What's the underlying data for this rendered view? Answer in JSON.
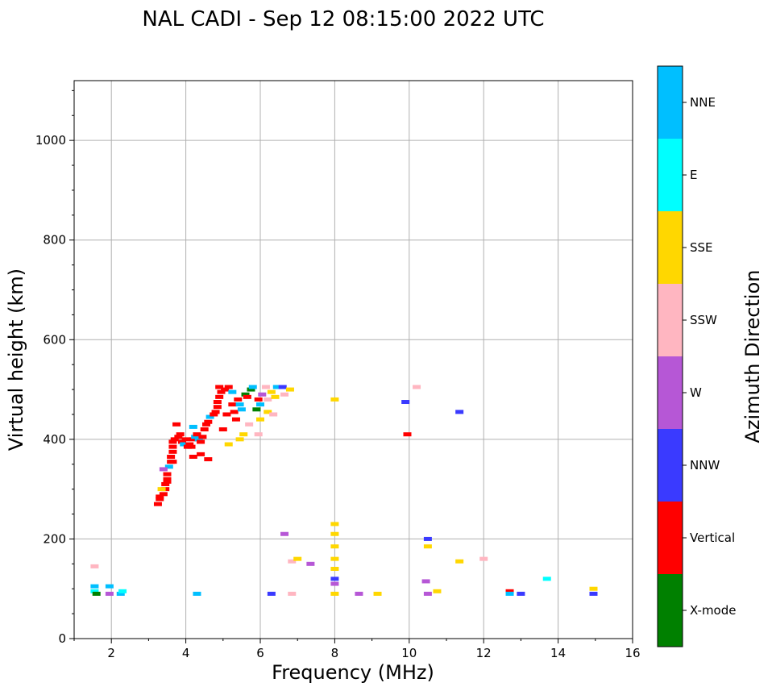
{
  "chart_data": {
    "type": "scatter",
    "title": "NAL CADI - Sep 12 08:15:00 2022 UTC",
    "xlabel": "Frequency (MHz)",
    "ylabel": "Virtual height (km)",
    "xlim": [
      1,
      16
    ],
    "ylim": [
      0,
      1120
    ],
    "xticks": [
      2,
      4,
      6,
      8,
      10,
      12,
      14,
      16
    ],
    "yticks": [
      0,
      200,
      400,
      600,
      800,
      1000
    ],
    "grid": true,
    "colorbar": {
      "label": "Azimuth Direction",
      "categories": [
        {
          "name": "X-mode",
          "color": "#008000"
        },
        {
          "name": "Vertical",
          "color": "#ff0000"
        },
        {
          "name": "NNW",
          "color": "#3a3aff"
        },
        {
          "name": "W",
          "color": "#b657d6"
        },
        {
          "name": "SSW",
          "color": "#ffb6c1"
        },
        {
          "name": "SSE",
          "color": "#ffd700"
        },
        {
          "name": "E",
          "color": "#00ffff"
        },
        {
          "name": "NNE",
          "color": "#00bfff"
        }
      ]
    },
    "points": [
      {
        "f": 3.25,
        "h": 270,
        "c": "Vertical"
      },
      {
        "f": 3.3,
        "h": 280,
        "c": "Vertical"
      },
      {
        "f": 3.3,
        "h": 285,
        "c": "Vertical"
      },
      {
        "f": 3.4,
        "h": 290,
        "c": "Vertical"
      },
      {
        "f": 3.45,
        "h": 300,
        "c": "Vertical"
      },
      {
        "f": 3.45,
        "h": 310,
        "c": "Vertical"
      },
      {
        "f": 3.5,
        "h": 315,
        "c": "Vertical"
      },
      {
        "f": 3.5,
        "h": 320,
        "c": "Vertical"
      },
      {
        "f": 3.5,
        "h": 330,
        "c": "Vertical"
      },
      {
        "f": 3.55,
        "h": 345,
        "c": "NNE"
      },
      {
        "f": 3.6,
        "h": 355,
        "c": "Vertical"
      },
      {
        "f": 3.65,
        "h": 355,
        "c": "Vertical"
      },
      {
        "f": 3.6,
        "h": 365,
        "c": "Vertical"
      },
      {
        "f": 3.65,
        "h": 375,
        "c": "Vertical"
      },
      {
        "f": 3.65,
        "h": 385,
        "c": "Vertical"
      },
      {
        "f": 3.65,
        "h": 395,
        "c": "Vertical"
      },
      {
        "f": 3.7,
        "h": 400,
        "c": "Vertical"
      },
      {
        "f": 3.8,
        "h": 405,
        "c": "Vertical"
      },
      {
        "f": 3.75,
        "h": 430,
        "c": "Vertical"
      },
      {
        "f": 3.85,
        "h": 410,
        "c": "Vertical"
      },
      {
        "f": 3.9,
        "h": 395,
        "c": "Vertical"
      },
      {
        "f": 3.95,
        "h": 390,
        "c": "NNE"
      },
      {
        "f": 4.0,
        "h": 400,
        "c": "Vertical"
      },
      {
        "f": 4.05,
        "h": 385,
        "c": "Vertical"
      },
      {
        "f": 4.1,
        "h": 390,
        "c": "Vertical"
      },
      {
        "f": 4.15,
        "h": 385,
        "c": "Vertical"
      },
      {
        "f": 4.2,
        "h": 400,
        "c": "Vertical"
      },
      {
        "f": 4.25,
        "h": 405,
        "c": "NNE"
      },
      {
        "f": 4.3,
        "h": 410,
        "c": "Vertical"
      },
      {
        "f": 4.35,
        "h": 400,
        "c": "NNE"
      },
      {
        "f": 4.4,
        "h": 395,
        "c": "Vertical"
      },
      {
        "f": 4.45,
        "h": 405,
        "c": "Vertical"
      },
      {
        "f": 4.5,
        "h": 420,
        "c": "Vertical"
      },
      {
        "f": 4.55,
        "h": 430,
        "c": "Vertical"
      },
      {
        "f": 4.6,
        "h": 435,
        "c": "Vertical"
      },
      {
        "f": 4.65,
        "h": 445,
        "c": "NNE"
      },
      {
        "f": 4.75,
        "h": 450,
        "c": "Vertical"
      },
      {
        "f": 4.8,
        "h": 455,
        "c": "Vertical"
      },
      {
        "f": 4.85,
        "h": 465,
        "c": "Vertical"
      },
      {
        "f": 4.85,
        "h": 475,
        "c": "Vertical"
      },
      {
        "f": 4.9,
        "h": 485,
        "c": "Vertical"
      },
      {
        "f": 4.95,
        "h": 495,
        "c": "Vertical"
      },
      {
        "f": 4.9,
        "h": 505,
        "c": "Vertical"
      },
      {
        "f": 5.05,
        "h": 500,
        "c": "Vertical"
      },
      {
        "f": 5.0,
        "h": 420,
        "c": "Vertical"
      },
      {
        "f": 5.1,
        "h": 450,
        "c": "Vertical"
      },
      {
        "f": 5.15,
        "h": 505,
        "c": "Vertical"
      },
      {
        "f": 5.25,
        "h": 470,
        "c": "Vertical"
      },
      {
        "f": 5.25,
        "h": 495,
        "c": "NNE"
      },
      {
        "f": 5.3,
        "h": 455,
        "c": "Vertical"
      },
      {
        "f": 5.35,
        "h": 440,
        "c": "Vertical"
      },
      {
        "f": 5.4,
        "h": 480,
        "c": "Vertical"
      },
      {
        "f": 5.45,
        "h": 470,
        "c": "NNE"
      },
      {
        "f": 5.5,
        "h": 460,
        "c": "NNE"
      },
      {
        "f": 5.6,
        "h": 490,
        "c": "X-mode"
      },
      {
        "f": 5.65,
        "h": 485,
        "c": "Vertical"
      },
      {
        "f": 5.75,
        "h": 500,
        "c": "X-mode"
      },
      {
        "f": 5.8,
        "h": 505,
        "c": "NNE"
      },
      {
        "f": 5.95,
        "h": 480,
        "c": "Vertical"
      },
      {
        "f": 5.9,
        "h": 460,
        "c": "X-mode"
      },
      {
        "f": 6.0,
        "h": 470,
        "c": "NNE"
      },
      {
        "f": 6.05,
        "h": 490,
        "c": "W"
      },
      {
        "f": 6.15,
        "h": 505,
        "c": "SSW"
      },
      {
        "f": 6.2,
        "h": 480,
        "c": "SSW"
      },
      {
        "f": 6.3,
        "h": 495,
        "c": "SSE"
      },
      {
        "f": 6.4,
        "h": 485,
        "c": "SSE"
      },
      {
        "f": 6.45,
        "h": 505,
        "c": "NNE"
      },
      {
        "f": 6.6,
        "h": 505,
        "c": "NNW"
      },
      {
        "f": 6.8,
        "h": 500,
        "c": "SSE"
      },
      {
        "f": 6.65,
        "h": 490,
        "c": "SSW"
      },
      {
        "f": 5.55,
        "h": 410,
        "c": "SSE"
      },
      {
        "f": 5.45,
        "h": 400,
        "c": "SSE"
      },
      {
        "f": 5.7,
        "h": 430,
        "c": "SSW"
      },
      {
        "f": 5.95,
        "h": 410,
        "c": "SSW"
      },
      {
        "f": 6.0,
        "h": 440,
        "c": "SSE"
      },
      {
        "f": 6.2,
        "h": 455,
        "c": "SSE"
      },
      {
        "f": 6.35,
        "h": 450,
        "c": "SSW"
      },
      {
        "f": 5.15,
        "h": 390,
        "c": "SSE"
      },
      {
        "f": 4.6,
        "h": 360,
        "c": "Vertical"
      },
      {
        "f": 4.4,
        "h": 370,
        "c": "Vertical"
      },
      {
        "f": 4.2,
        "h": 365,
        "c": "Vertical"
      },
      {
        "f": 3.4,
        "h": 340,
        "c": "W"
      },
      {
        "f": 3.35,
        "h": 300,
        "c": "SSE"
      },
      {
        "f": 4.2,
        "h": 425,
        "c": "NNE"
      },
      {
        "f": 8.0,
        "h": 480,
        "c": "SSE"
      },
      {
        "f": 9.9,
        "h": 475,
        "c": "NNW"
      },
      {
        "f": 10.2,
        "h": 505,
        "c": "SSW"
      },
      {
        "f": 9.95,
        "h": 410,
        "c": "Vertical"
      },
      {
        "f": 11.35,
        "h": 455,
        "c": "NNW"
      },
      {
        "f": 8.0,
        "h": 230,
        "c": "SSE"
      },
      {
        "f": 8.0,
        "h": 210,
        "c": "SSE"
      },
      {
        "f": 8.0,
        "h": 185,
        "c": "SSE"
      },
      {
        "f": 8.0,
        "h": 160,
        "c": "SSE"
      },
      {
        "f": 8.0,
        "h": 140,
        "c": "SSE"
      },
      {
        "f": 8.0,
        "h": 120,
        "c": "NNW"
      },
      {
        "f": 8.0,
        "h": 110,
        "c": "W"
      },
      {
        "f": 8.0,
        "h": 90,
        "c": "SSE"
      },
      {
        "f": 6.65,
        "h": 210,
        "c": "W"
      },
      {
        "f": 6.85,
        "h": 155,
        "c": "SSW"
      },
      {
        "f": 7.0,
        "h": 160,
        "c": "SSE"
      },
      {
        "f": 7.35,
        "h": 150,
        "c": "W"
      },
      {
        "f": 6.85,
        "h": 90,
        "c": "SSW"
      },
      {
        "f": 6.3,
        "h": 90,
        "c": "NNW"
      },
      {
        "f": 8.65,
        "h": 90,
        "c": "W"
      },
      {
        "f": 9.15,
        "h": 90,
        "c": "SSE"
      },
      {
        "f": 10.5,
        "h": 200,
        "c": "NNW"
      },
      {
        "f": 10.5,
        "h": 185,
        "c": "SSE"
      },
      {
        "f": 10.45,
        "h": 115,
        "c": "W"
      },
      {
        "f": 10.5,
        "h": 90,
        "c": "W"
      },
      {
        "f": 10.75,
        "h": 95,
        "c": "SSE"
      },
      {
        "f": 11.35,
        "h": 155,
        "c": "SSE"
      },
      {
        "f": 12.0,
        "h": 160,
        "c": "SSW"
      },
      {
        "f": 12.7,
        "h": 95,
        "c": "Vertical"
      },
      {
        "f": 12.7,
        "h": 90,
        "c": "NNE"
      },
      {
        "f": 13.0,
        "h": 90,
        "c": "NNW"
      },
      {
        "f": 13.7,
        "h": 120,
        "c": "E"
      },
      {
        "f": 14.95,
        "h": 100,
        "c": "SSE"
      },
      {
        "f": 14.95,
        "h": 90,
        "c": "NNW"
      },
      {
        "f": 1.55,
        "h": 145,
        "c": "SSW"
      },
      {
        "f": 1.55,
        "h": 105,
        "c": "NNE"
      },
      {
        "f": 1.55,
        "h": 95,
        "c": "E"
      },
      {
        "f": 1.6,
        "h": 90,
        "c": "X-mode"
      },
      {
        "f": 1.95,
        "h": 105,
        "c": "NNE"
      },
      {
        "f": 1.95,
        "h": 90,
        "c": "W"
      },
      {
        "f": 2.25,
        "h": 90,
        "c": "NNE"
      },
      {
        "f": 2.3,
        "h": 95,
        "c": "E"
      },
      {
        "f": 4.3,
        "h": 90,
        "c": "NNE"
      }
    ]
  }
}
